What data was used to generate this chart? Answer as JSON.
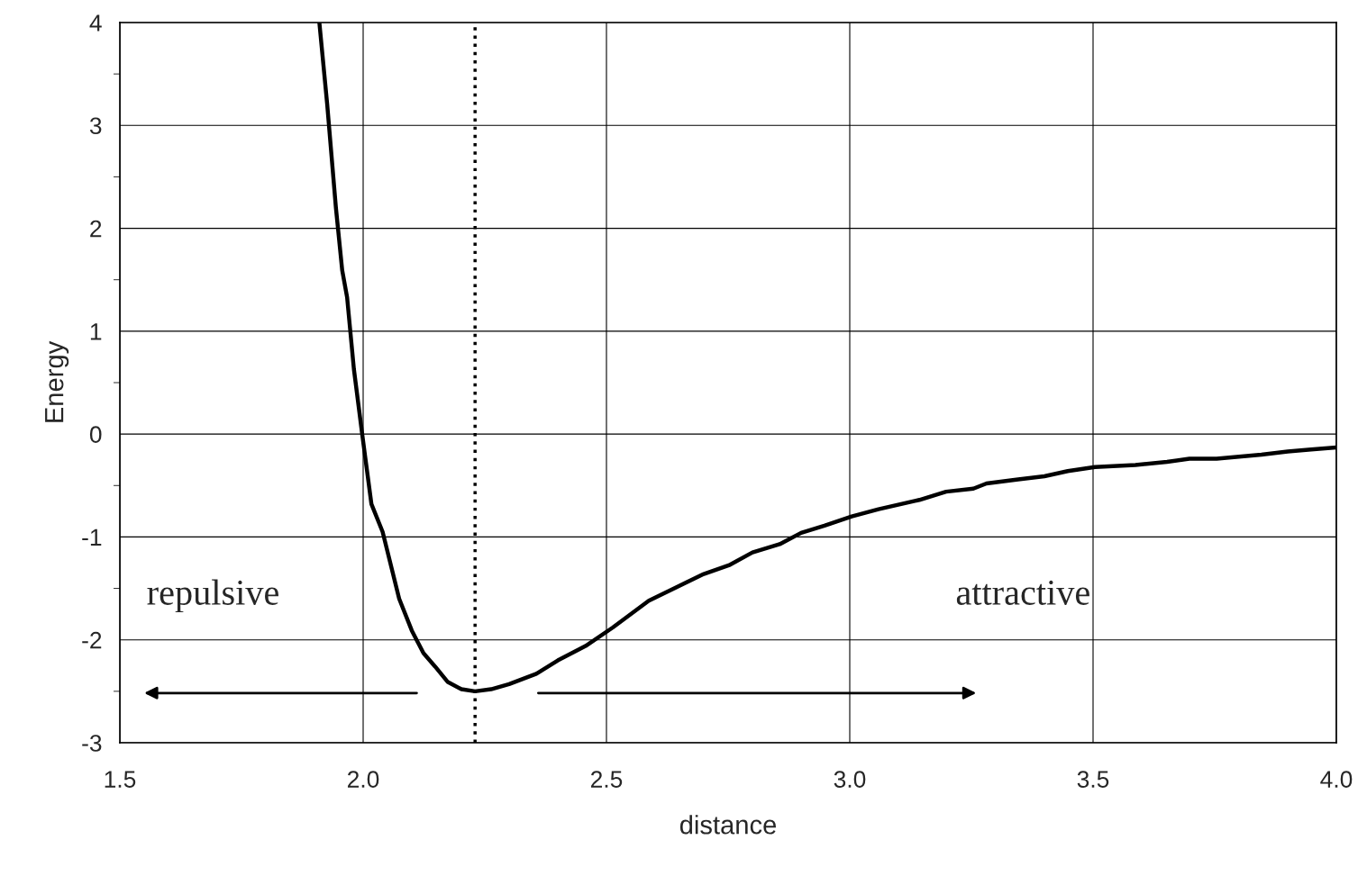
{
  "chart_data": {
    "type": "line",
    "xlabel": "distance",
    "ylabel": "Energy",
    "xlim": [
      1.5,
      4.0
    ],
    "xticks": [
      1.5,
      {
        "value": 2.0,
        "label": "2.0"
      },
      2.5,
      {
        "value": 3.0,
        "label": "3.0"
      },
      3.5,
      {
        "value": 4.0,
        "label": "4.0"
      }
    ],
    "ylim": [
      -3,
      4
    ],
    "yticks": [
      -3,
      {
        "value": -2.5,
        "label": null
      },
      -2,
      {
        "value": -1.5,
        "label": null
      },
      -1,
      {
        "value": -0.5,
        "label": null
      },
      0,
      {
        "value": 0.5,
        "label": null
      },
      1,
      {
        "value": 1.5,
        "label": null
      },
      2,
      {
        "value": 2.5,
        "label": null
      },
      3,
      {
        "value": 3.5,
        "label": null
      },
      4
    ],
    "grid": true,
    "line_style": "solid",
    "marker": "none",
    "x": [
      1.91,
      1.926,
      1.944,
      1.957,
      1.967,
      1.981,
      1.998,
      2.017,
      2.04,
      2.074,
      2.1,
      2.124,
      2.148,
      2.174,
      2.202,
      2.23,
      2.263,
      2.3,
      2.356,
      2.4,
      2.457,
      2.513,
      2.587,
      2.643,
      2.7,
      2.754,
      2.8,
      2.856,
      2.9,
      2.948,
      3.004,
      3.059,
      3.143,
      3.198,
      3.254,
      3.281,
      3.346,
      3.4,
      3.448,
      3.504,
      3.587,
      3.652,
      3.698,
      3.754,
      3.846,
      3.9,
      3.948,
      4.0
    ],
    "series": [
      {
        "color": "#000000",
        "values": [
          4.0,
          3.21,
          2.2,
          1.59,
          1.33,
          0.63,
          0.0,
          -0.68,
          -0.95,
          -1.6,
          -1.91,
          -2.13,
          -2.26,
          -2.41,
          -2.48,
          -2.5,
          -2.48,
          -2.43,
          -2.33,
          -2.2,
          -2.06,
          -1.88,
          -1.62,
          -1.49,
          -1.36,
          -1.27,
          -1.15,
          -1.07,
          -0.96,
          -0.89,
          -0.8,
          -0.73,
          -0.64,
          -0.56,
          -0.53,
          -0.48,
          -0.44,
          -0.41,
          -0.36,
          -0.32,
          -0.3,
          -0.27,
          -0.24,
          -0.24,
          -0.2,
          -0.17,
          -0.15,
          -0.13
        ]
      }
    ],
    "ref_lines": [
      {
        "axis": "x",
        "value": 2.23,
        "color": "#000000",
        "line_style": "dotted"
      }
    ],
    "annotations": [
      "repulsive",
      "attractive"
    ]
  }
}
